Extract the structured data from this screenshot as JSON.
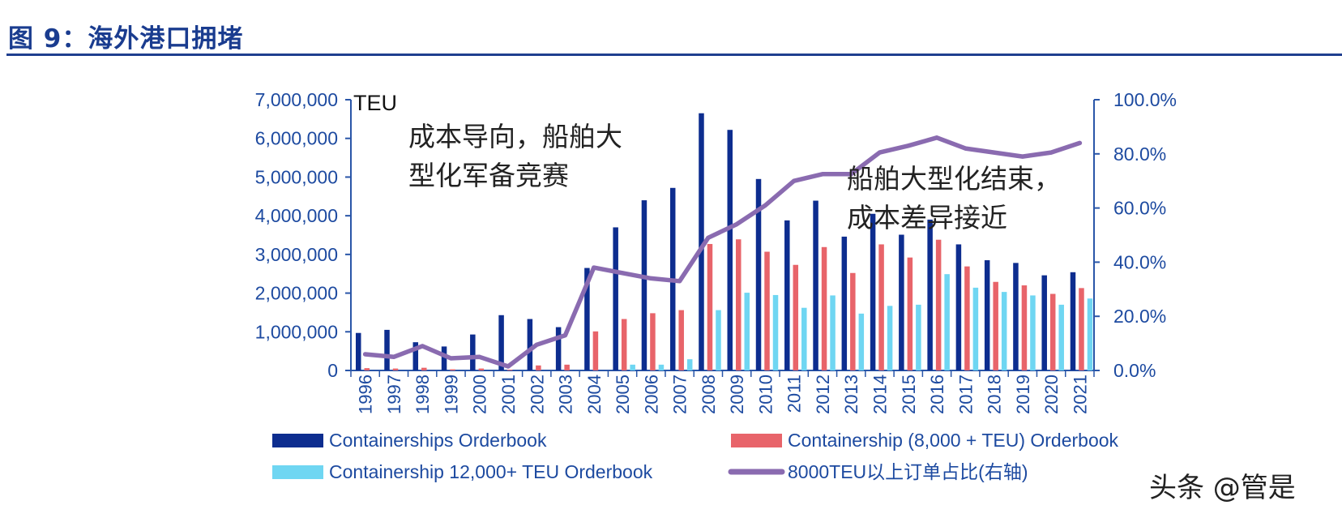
{
  "figure_title": "图 9：海外港口拥堵",
  "watermark": "头条 @管是",
  "colors": {
    "orderbook": "#0d2d8f",
    "orderbook_8000": "#e8646a",
    "orderbook_12000": "#6fd6f2",
    "share_line": "#8a6bb0",
    "axis_text": "#1d4aa0",
    "title": "#1a3c8f"
  },
  "chart_data": {
    "type": "bar",
    "unit_label": "TEU",
    "categories": [
      "1996",
      "1997",
      "1998",
      "1999",
      "2000",
      "2001",
      "2002",
      "2003",
      "2004",
      "2005",
      "2006",
      "2007",
      "2008",
      "2009",
      "2010",
      "2011",
      "2012",
      "2013",
      "2014",
      "2015",
      "2016",
      "2017",
      "2018",
      "2019",
      "2020",
      "2021"
    ],
    "series": [
      {
        "name": "Containerships Orderbook",
        "type": "bar",
        "axis": "left",
        "values": [
          970000,
          1050000,
          730000,
          620000,
          930000,
          1430000,
          1330000,
          1120000,
          2650000,
          3700000,
          4400000,
          4720000,
          6650000,
          6220000,
          4950000,
          3880000,
          4390000,
          3460000,
          4050000,
          3510000,
          3900000,
          3260000,
          2850000,
          2780000,
          2460000,
          2540000
        ]
      },
      {
        "name": "Containership (8,000 + TEU) Orderbook",
        "type": "bar",
        "axis": "left",
        "values": [
          60000,
          50000,
          70000,
          30000,
          50000,
          20000,
          130000,
          150000,
          1010000,
          1330000,
          1480000,
          1560000,
          3270000,
          3390000,
          3070000,
          2730000,
          3190000,
          2520000,
          3260000,
          2920000,
          3380000,
          2690000,
          2290000,
          2200000,
          1980000,
          2130000
        ]
      },
      {
        "name": "Containership 12,000+ TEU Orderbook",
        "type": "bar",
        "axis": "left",
        "values": [
          0,
          0,
          0,
          0,
          0,
          0,
          0,
          0,
          0,
          150000,
          150000,
          290000,
          1560000,
          2010000,
          1950000,
          1620000,
          1940000,
          1470000,
          1670000,
          1700000,
          2490000,
          2140000,
          2030000,
          1940000,
          1700000,
          1860000
        ]
      },
      {
        "name": "8000TEU以上订单占比(右轴)",
        "type": "line",
        "axis": "right",
        "values": [
          6.0,
          5.0,
          9.0,
          4.5,
          5.0,
          1.5,
          9.5,
          13.0,
          38.0,
          36.0,
          34.0,
          33.0,
          49.0,
          54.0,
          61.0,
          70.0,
          72.5,
          72.5,
          80.5,
          83.0,
          86.0,
          82.0,
          80.5,
          79.0,
          80.5,
          84.0
        ]
      }
    ],
    "left_axis": {
      "min": 0,
      "max": 7000000,
      "ticks": [
        "0",
        "1,000,000",
        "2,000,000",
        "3,000,000",
        "4,000,000",
        "5,000,000",
        "6,000,000",
        "7,000,000"
      ]
    },
    "right_axis": {
      "min": 0,
      "max": 100,
      "ticks": [
        "0.0%",
        "20.0%",
        "40.0%",
        "60.0%",
        "80.0%",
        "100.0%"
      ]
    },
    "annotations": [
      {
        "lines": [
          "成本导向，船舶大",
          "型化军备竞赛"
        ]
      },
      {
        "lines": [
          "船舶大型化结束，",
          "成本差异接近"
        ]
      }
    ],
    "legend": [
      {
        "label": "Containerships Orderbook",
        "kind": "bar"
      },
      {
        "label": "Containership (8,000 + TEU) Orderbook",
        "kind": "bar"
      },
      {
        "label": "Containership 12,000+ TEU Orderbook",
        "kind": "bar"
      },
      {
        "label": "8000TEU以上订单占比(右轴)",
        "kind": "line"
      }
    ]
  }
}
